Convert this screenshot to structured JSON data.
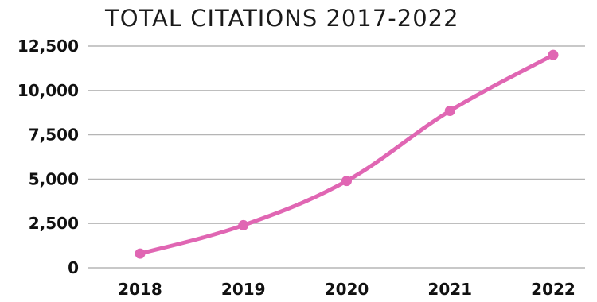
{
  "chart_data": {
    "type": "line",
    "title": "TOTAL CITATIONS  2017-2022",
    "xlabel": "",
    "ylabel": "",
    "categories": [
      "2018",
      "2019",
      "2020",
      "2021",
      "2022"
    ],
    "series": [
      {
        "values": [
          800,
          2400,
          4900,
          8850,
          12000
        ],
        "color": "#e066b3"
      }
    ],
    "ylim": [
      0,
      12500
    ],
    "yticks": [
      0,
      2500,
      5000,
      7500,
      10000,
      12500
    ],
    "ytick_labels": [
      "0",
      "2,500",
      "5,000",
      "7,500",
      "10,000",
      "12,500"
    ],
    "grid": true,
    "legend": "none"
  }
}
